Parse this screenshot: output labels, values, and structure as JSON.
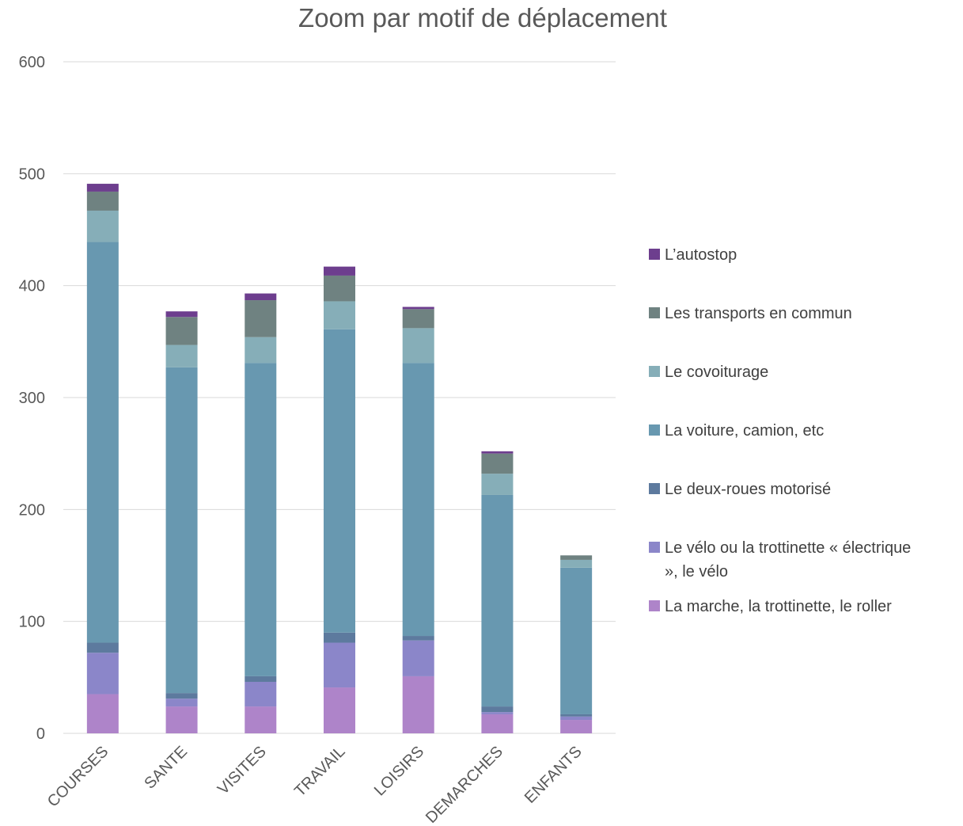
{
  "chart_data": {
    "type": "bar",
    "stacked": true,
    "title": "Zoom par motif de déplacement",
    "xlabel": "",
    "ylabel": "",
    "ylim": [
      0,
      600
    ],
    "yticks": [
      "0",
      "100",
      "200",
      "300",
      "400",
      "500",
      "600"
    ],
    "grid": true,
    "legend_position": "right",
    "categories": [
      "COURSES",
      "SANTE",
      "VISITES",
      "TRAVAIL",
      "LOISIRS",
      "DEMARCHES",
      "ENFANTS"
    ],
    "series": [
      {
        "name": "La marche, la trottinette, le roller",
        "color": "#ae84c9",
        "values": [
          35,
          24,
          24,
          41,
          51,
          17,
          12
        ]
      },
      {
        "name": "Le vélo ou la trottinette « électrique », le vélo",
        "color": "#8b86c9",
        "values": [
          37,
          7,
          22,
          40,
          32,
          2,
          3
        ]
      },
      {
        "name": "Le deux-roues motorisé",
        "color": "#5d7a9e",
        "values": [
          9,
          5,
          5,
          9,
          4,
          5,
          2
        ]
      },
      {
        "name": "La voiture, camion, etc",
        "color": "#6898b0",
        "values": [
          358,
          291,
          280,
          271,
          244,
          189,
          131
        ]
      },
      {
        "name": "Le covoiturage",
        "color": "#86aeb8",
        "values": [
          28,
          20,
          23,
          25,
          31,
          19,
          7
        ]
      },
      {
        "name": "Les transports en commun",
        "color": "#6f8281",
        "values": [
          17,
          25,
          33,
          23,
          17,
          18,
          4
        ]
      },
      {
        "name": "L’autostop",
        "color": "#6d3e8e",
        "values": [
          7,
          5,
          6,
          8,
          2,
          2,
          0
        ]
      }
    ],
    "legend": [
      {
        "label_lines": [
          "L’autostop"
        ],
        "color": "#6d3e8e"
      },
      {
        "label_lines": [
          "Les transports en commun"
        ],
        "color": "#6f8281"
      },
      {
        "label_lines": [
          "Le covoiturage"
        ],
        "color": "#86aeb8"
      },
      {
        "label_lines": [
          "La voiture, camion, etc"
        ],
        "color": "#6898b0"
      },
      {
        "label_lines": [
          "Le deux-roues motorisé"
        ],
        "color": "#5d7a9e"
      },
      {
        "label_lines": [
          "Le vélo ou la trottinette « électrique",
          "», le vélo"
        ],
        "color": "#8b86c9"
      },
      {
        "label_lines": [
          "La marche, la trottinette, le roller"
        ],
        "color": "#ae84c9"
      }
    ]
  }
}
